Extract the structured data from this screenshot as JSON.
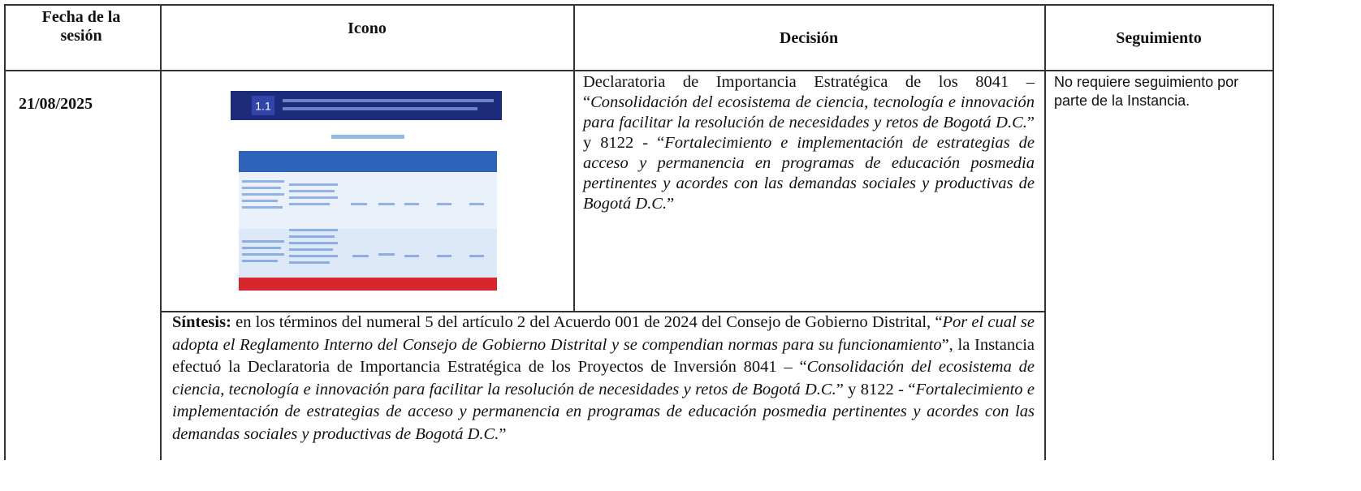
{
  "header": {
    "columns": [
      "Fecha de la sesión",
      "Icono",
      "Decisión",
      "Seguimiento"
    ]
  },
  "row": {
    "date": "21/08/2025",
    "icon_label": "1.1",
    "decision": [
      {
        "text": "Declaratoria de Importancia Estratégica de los 8041 – “",
        "style": "normal"
      },
      {
        "text": "Consolidación del ecosistema de ciencia, tecnología e innovación para facilitar la resolución de necesidades y retos de Bogotá D.C.",
        "style": "italic"
      },
      {
        "text": "” y 8122 - “",
        "style": "normal"
      },
      {
        "text": "Fortalecimiento e implementación de estrategias de acceso y permanencia en programas de educación posmedia pertinentes y acordes con las demandas sociales y productivas de Bogotá D.C.",
        "style": "italic"
      },
      {
        "text": "”",
        "style": "normal"
      }
    ],
    "follow_up": "No requiere seguimiento por parte de la Instancia.",
    "synthesis": [
      {
        "text": "Síntesis:",
        "style": "bold"
      },
      {
        "text": " en los términos del numeral 5 del artículo 2 del Acuerdo 001 de 2024 del Consejo de Gobierno Distrital, “",
        "style": "normal"
      },
      {
        "text": "Por el cual se adopta el Reglamento Interno del Consejo de Gobierno Distrital y se compendian normas para su funcionamiento",
        "style": "italic"
      },
      {
        "text": "”, la Instancia efectuó la Declaratoria de Importancia Estratégica de los Proyectos de Inversión 8041 – “",
        "style": "normal"
      },
      {
        "text": "Consolidación del ecosistema de ciencia, tecnología e innovación para facilitar la resolución de necesidades y retos de Bogotá D.C.",
        "style": "italic"
      },
      {
        "text": "” y 8122 - “",
        "style": "normal"
      },
      {
        "text": "Fortalecimiento e implementación de estrategias de acceso y permanencia en programas de educación posmedia pertinentes y acordes con las demandas sociales y productivas de Bogotá D.C.",
        "style": "italic"
      },
      {
        "text": "”",
        "style": "normal"
      }
    ]
  }
}
